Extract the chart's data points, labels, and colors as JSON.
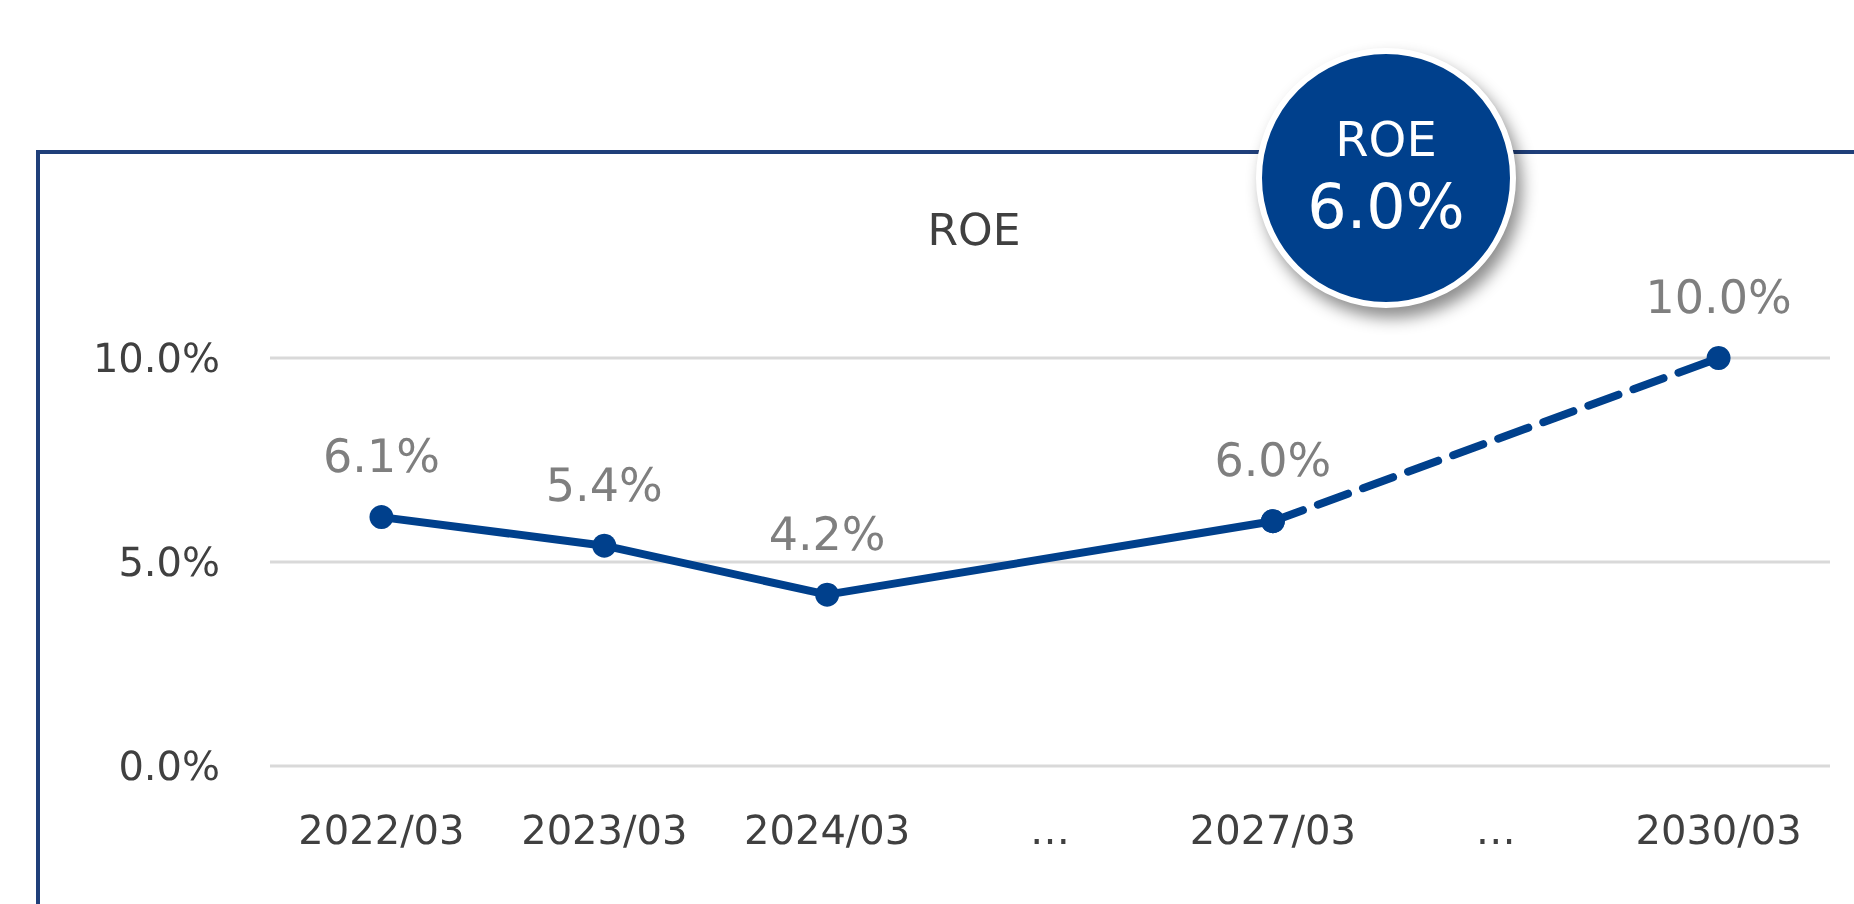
{
  "chart_data": {
    "type": "line",
    "title": "ROE",
    "categories": [
      "2022/03",
      "2023/03",
      "2024/03",
      "…",
      "2027/03",
      "…",
      "2030/03"
    ],
    "series": [
      {
        "color": "#00408c",
        "values": [
          6.1,
          5.4,
          4.2,
          null,
          6.0,
          null,
          null
        ],
        "value_labels": [
          "6.1%",
          "5.4%",
          "4.2%",
          null,
          "6.0%",
          null,
          null
        ],
        "line_style": "solid"
      },
      {
        "color": "#00408c",
        "values": [
          null,
          null,
          null,
          null,
          6.0,
          null,
          10.0
        ],
        "value_labels": [
          null,
          null,
          null,
          null,
          null,
          null,
          "10.0%"
        ],
        "line_style": "dashed"
      }
    ],
    "ylim": [
      0,
      10
    ],
    "yticks": [
      {
        "value": 0,
        "label": "0.0%"
      },
      {
        "value": 5,
        "label": "5.0%"
      },
      {
        "value": 10,
        "label": "10.0%"
      }
    ],
    "grid": "y",
    "marker": "circle",
    "annotations": [
      "ROE",
      "6.0%"
    ]
  }
}
